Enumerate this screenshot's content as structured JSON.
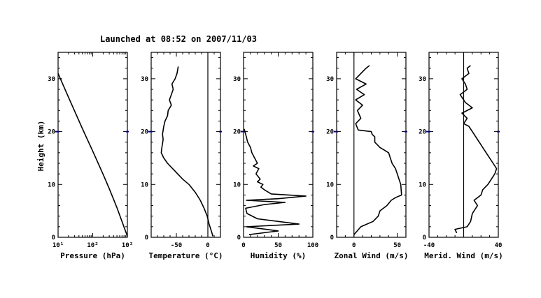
{
  "figure": {
    "title": "Launched at 08:52 on 2007/11/03",
    "ylabel": "Height (km)",
    "ytick_labels": [
      "0",
      "10",
      "20",
      "30"
    ],
    "accent_line_color": "#000080"
  },
  "chart_data": [
    {
      "type": "line",
      "xlabel": "Pressure (hPa)",
      "x_scale": "log",
      "xlim": [
        10,
        1000
      ],
      "ylim": [
        0,
        35
      ],
      "xtick_labels": [
        "10¹",
        "10²",
        "10³"
      ],
      "series": [
        {
          "x": [
            1000,
            700,
            500,
            300,
            200,
            100,
            50,
            20,
            10
          ],
          "y": [
            0.2,
            3.0,
            5.6,
            9.2,
            11.9,
            16.3,
            20.6,
            26.5,
            31.0
          ]
        }
      ]
    },
    {
      "type": "line",
      "xlabel": "Temperature (°C)",
      "xlim": [
        -90,
        20
      ],
      "ylim": [
        0,
        35
      ],
      "xtick_labels": [
        "-50",
        "0"
      ],
      "xtick_values": [
        -50,
        0
      ],
      "zero_line": 0,
      "series": [
        {
          "x": [
            8,
            6,
            2,
            -1,
            -6,
            -12,
            -20,
            -30,
            -40,
            -48,
            -56,
            -64,
            -70,
            -74,
            -73,
            -71,
            -72,
            -70,
            -68,
            -64,
            -63,
            -58,
            -61,
            -58,
            -55,
            -57,
            -52,
            -49,
            -47
          ],
          "y": [
            0.2,
            1,
            2.5,
            4,
            5.5,
            7,
            8.5,
            10,
            11,
            12,
            13,
            14,
            15,
            16,
            17,
            18.5,
            19.5,
            21,
            22,
            23,
            24,
            25,
            26,
            27,
            28,
            29,
            30,
            31,
            32.3
          ]
        }
      ]
    },
    {
      "type": "line",
      "xlabel": "Humidity (%)",
      "xlim": [
        0,
        100
      ],
      "ylim": [
        0,
        35
      ],
      "xtick_labels": [
        "0",
        "50",
        "100"
      ],
      "xtick_values": [
        0,
        50,
        100
      ],
      "series": [
        {
          "x": [
            8,
            50,
            4,
            80,
            20,
            5,
            3,
            30,
            60,
            4,
            50,
            90,
            40,
            30,
            25,
            28,
            20,
            24,
            18,
            22,
            14,
            20,
            16,
            12,
            10,
            6,
            5,
            4,
            3,
            2,
            1
          ],
          "y": [
            0.5,
            1.2,
            2,
            2.5,
            3.5,
            4.5,
            5.5,
            6.2,
            6.6,
            7,
            7.3,
            7.8,
            8.2,
            9,
            9.5,
            10,
            10.5,
            11,
            12,
            13,
            13.5,
            14,
            15,
            16,
            17,
            18,
            18.5,
            19,
            19.5,
            20,
            20.5
          ]
        }
      ]
    },
    {
      "type": "line",
      "xlabel": "Zonal Wind (m/s)",
      "xlim": [
        -20,
        60
      ],
      "ylim": [
        0,
        35
      ],
      "xtick_labels": [
        "0",
        "50"
      ],
      "xtick_values": [
        0,
        50
      ],
      "zero_line": 0,
      "series": [
        {
          "x": [
            0,
            8,
            22,
            28,
            30,
            38,
            43,
            48,
            55,
            54,
            52,
            50,
            48,
            44,
            42,
            40,
            35,
            30,
            24,
            24,
            21,
            20,
            5,
            2,
            8,
            4,
            10,
            2,
            12,
            3,
            14,
            2,
            8,
            14,
            18
          ],
          "y": [
            0.5,
            2,
            3,
            4,
            5,
            6,
            7,
            7.5,
            8,
            10,
            11,
            12,
            13,
            14,
            15,
            16,
            16.5,
            17,
            18,
            19,
            19.5,
            20,
            20.3,
            21.5,
            22.5,
            24,
            25,
            26,
            27,
            28,
            29,
            30,
            31,
            32,
            32.5
          ]
        }
      ]
    },
    {
      "type": "line",
      "xlabel": "Merid. Wind (m/s)",
      "xlim": [
        -40,
        40
      ],
      "ylim": [
        0,
        35
      ],
      "xtick_labels": [
        "-40",
        "40"
      ],
      "xtick_values": [
        -40,
        40
      ],
      "zero_line": 0,
      "series": [
        {
          "x": [
            -8,
            -10,
            4,
            8,
            10,
            16,
            12,
            20,
            22,
            28,
            32,
            36,
            38,
            34,
            30,
            26,
            22,
            18,
            14,
            10,
            6,
            0,
            4,
            -2,
            10,
            2,
            -4,
            4,
            2,
            -2,
            6,
            4,
            8
          ],
          "y": [
            0.8,
            1.5,
            2,
            3,
            4.5,
            6,
            7,
            8,
            9,
            10,
            11,
            12,
            13,
            14,
            15,
            16,
            17,
            18,
            19,
            20,
            21,
            21.5,
            22.5,
            23.5,
            24.5,
            25.5,
            27,
            28,
            29,
            30,
            31,
            32,
            32.5
          ]
        }
      ]
    }
  ]
}
